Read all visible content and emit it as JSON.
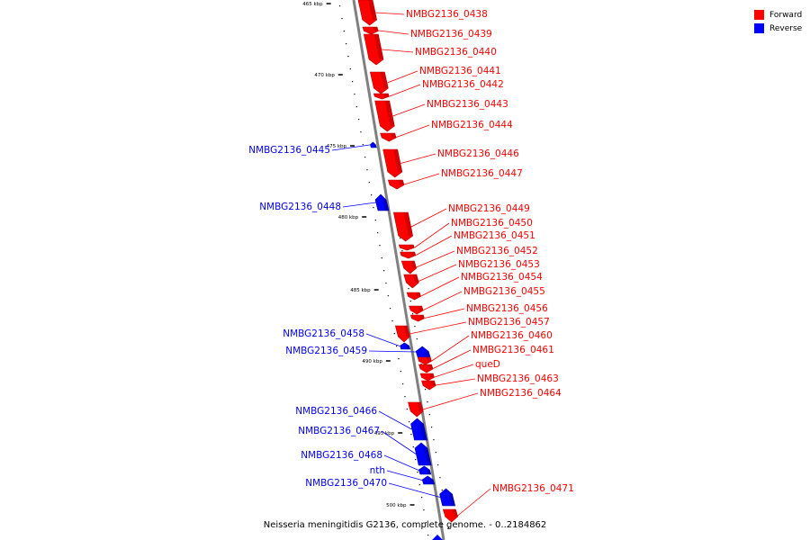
{
  "caption": "Neisseria meningitidis G2136, complete genome. - 0..2184862",
  "legend": {
    "forward": {
      "label": "Forward",
      "color": "#ff0000"
    },
    "reverse": {
      "label": "Reverse",
      "color": "#0000ff"
    }
  },
  "colors": {
    "forward": "#ff0000",
    "reverse": "#0000ff",
    "backbone": "#808080"
  },
  "ticks": [
    "465 kbp",
    "470 kbp",
    "475 kbp",
    "480 kbp",
    "485 kbp",
    "490 kbp",
    "495 kbp",
    "500 kbp"
  ],
  "genes": [
    {
      "label": "NMBG2136_0438",
      "strand": "forward"
    },
    {
      "label": "NMBG2136_0439",
      "strand": "forward"
    },
    {
      "label": "NMBG2136_0440",
      "strand": "forward"
    },
    {
      "label": "NMBG2136_0441",
      "strand": "forward"
    },
    {
      "label": "NMBG2136_0442",
      "strand": "forward"
    },
    {
      "label": "NMBG2136_0443",
      "strand": "forward"
    },
    {
      "label": "NMBG2136_0444",
      "strand": "forward"
    },
    {
      "label": "NMBG2136_0445",
      "strand": "reverse"
    },
    {
      "label": "NMBG2136_0446",
      "strand": "forward"
    },
    {
      "label": "NMBG2136_0447",
      "strand": "forward"
    },
    {
      "label": "NMBG2136_0448",
      "strand": "reverse"
    },
    {
      "label": "NMBG2136_0449",
      "strand": "forward"
    },
    {
      "label": "NMBG2136_0450",
      "strand": "forward"
    },
    {
      "label": "NMBG2136_0451",
      "strand": "forward"
    },
    {
      "label": "NMBG2136_0452",
      "strand": "forward"
    },
    {
      "label": "NMBG2136_0453",
      "strand": "forward"
    },
    {
      "label": "NMBG2136_0454",
      "strand": "forward"
    },
    {
      "label": "NMBG2136_0455",
      "strand": "forward"
    },
    {
      "label": "NMBG2136_0456",
      "strand": "forward"
    },
    {
      "label": "NMBG2136_0457",
      "strand": "forward"
    },
    {
      "label": "NMBG2136_0458",
      "strand": "reverse"
    },
    {
      "label": "NMBG2136_0459",
      "strand": "reverse"
    },
    {
      "label": "NMBG2136_0460",
      "strand": "forward"
    },
    {
      "label": "NMBG2136_0461",
      "strand": "forward"
    },
    {
      "label": "queD",
      "strand": "forward"
    },
    {
      "label": "NMBG2136_0463",
      "strand": "forward"
    },
    {
      "label": "NMBG2136_0464",
      "strand": "forward"
    },
    {
      "label": "NMBG2136_0466",
      "strand": "reverse"
    },
    {
      "label": "NMBG2136_0467",
      "strand": "reverse"
    },
    {
      "label": "NMBG2136_0468",
      "strand": "reverse"
    },
    {
      "label": "nth",
      "strand": "reverse"
    },
    {
      "label": "NMBG2136_0470",
      "strand": "reverse"
    },
    {
      "label": "NMBG2136_0471",
      "strand": "forward"
    }
  ]
}
